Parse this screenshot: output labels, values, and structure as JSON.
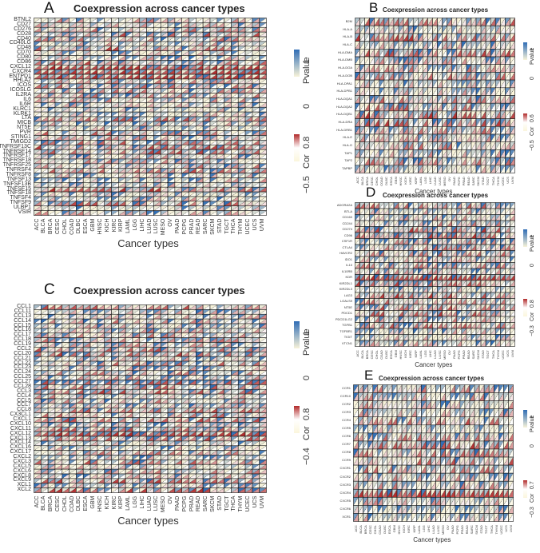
{
  "colors": {
    "pvalue_low": "#f8f3d9",
    "pvalue_high": "#2f6db5",
    "cor_low": "#fbf6dc",
    "cor_mid": "#ffffff",
    "cor_high": "#b22a2a",
    "border": "#1a1a1a"
  },
  "cancer_types": [
    "ACC",
    "BLCA",
    "BRCA",
    "CESC",
    "CHOL",
    "COAD",
    "DLBC",
    "ESCA",
    "GBM",
    "HNSC",
    "KICH",
    "KIRC",
    "KIRP",
    "LAML",
    "LGG",
    "LIHC",
    "LUAD",
    "LUSC",
    "MESO",
    "OV",
    "PAAD",
    "PCPG",
    "PRAD",
    "READ",
    "SARC",
    "SKCM",
    "STAD",
    "TGCT",
    "THCA",
    "THYM",
    "UCEC",
    "UCS",
    "UVM"
  ],
  "chart_data": [
    {
      "id": "A",
      "type": "heatmap",
      "title": "Coexpression across cancer types",
      "xlabel": "Cancer types",
      "ylabel": "",
      "genes": [
        "BTNL2",
        "CD27",
        "CD276",
        "CD28",
        "CD40",
        "CD40LG",
        "CD48",
        "CD70",
        "CD80",
        "CD86",
        "CXCL12",
        "CXCR4",
        "ENTPD1",
        "HHLA2",
        "ICOS",
        "ICOSLG",
        "IL2RA",
        "IL6",
        "IL6R",
        "KLRC1",
        "KLRK1",
        "LTA",
        "MICB",
        "NT5E",
        "PVR",
        "STING1",
        "TMIGD2",
        "TNFRSF13C",
        "TNFRSF14",
        "TNFRSF17",
        "TNFRSF18",
        "TNFRSF25",
        "TNFRSF4",
        "TNFRSF8",
        "TNFSF13",
        "TNFSF13B",
        "TNFSF15",
        "TNFSF18",
        "TNFSF4",
        "TNFSF9",
        "ULBP1",
        "VSIR"
      ],
      "legend_pvalue": {
        "title": "Pvalue",
        "min": "0",
        "max": "1"
      },
      "legend_cor": {
        "title": "Cor",
        "min": "−0.5",
        "max": "0.8"
      }
    },
    {
      "id": "B",
      "type": "heatmap",
      "title": "Coexpression across cancer types",
      "xlabel": "Cancer types",
      "ylabel": "",
      "genes": [
        "B2M",
        "HLA-A",
        "HLA-B",
        "HLA-C",
        "HLA-DMA",
        "HLA-DMB",
        "HLA-DOA",
        "HLA-DOB",
        "HLA-DPA1",
        "HLA-DPB1",
        "HLA-DQA1",
        "HLA-DQA2",
        "HLA-DQB1",
        "HLA-DRA",
        "HLA-DRB1",
        "HLA-E",
        "HLA-G",
        "TAP1",
        "TAP2",
        "TAPBP"
      ],
      "legend_pvalue": {
        "title": "Pvalue",
        "min": "0",
        "max": "1"
      },
      "legend_cor": {
        "title": "Cor",
        "min": "−0.5",
        "max": "0.6"
      }
    },
    {
      "id": "C",
      "type": "heatmap",
      "title": "Coexpression across cancer types",
      "xlabel": "Cancer types",
      "ylabel": "",
      "genes": [
        "CCL1",
        "CCL11",
        "CCL13",
        "CCL14",
        "CCL15",
        "CCL16",
        "CCL17",
        "CCL18",
        "CCL19",
        "CCL2",
        "CCL20",
        "CCL21",
        "CCL22",
        "CCL23",
        "CCL24",
        "CCL25",
        "CCL27",
        "CCL28",
        "CCL3",
        "CCL4",
        "CCL5",
        "CCL7",
        "CCL8",
        "CX3CL1",
        "CXCL1",
        "CXCL10",
        "CXCL11",
        "CXCL12",
        "CXCL13",
        "CXCL14",
        "CXCL16",
        "CXCL17",
        "CXCL2",
        "CXCL3",
        "CXCL5",
        "CXCL6",
        "CXCL8",
        "CXCL9",
        "XCL1",
        "XCL2"
      ],
      "legend_pvalue": {
        "title": "Pvalue",
        "min": "0",
        "max": "1"
      },
      "legend_cor": {
        "title": "Cor",
        "min": "−0.4",
        "max": "0.8"
      }
    },
    {
      "id": "D",
      "type": "heatmap",
      "title": "Coexpression across cancer types",
      "xlabel": "Cancer types",
      "ylabel": "",
      "genes": [
        "ADORA2A",
        "BTLA",
        "CD160",
        "CD244",
        "CD274",
        "CD96",
        "CSF1R",
        "CTLA4",
        "HAVCR2",
        "IDO1",
        "IL10",
        "IL10RB",
        "KDR",
        "KIR2DL1",
        "KIR2DL3",
        "LAG3",
        "LGALS9",
        "NT5E",
        "PDCD1",
        "PDCD1LG2",
        "TGFB1",
        "TGFBR1",
        "TIGIT",
        "VTCN1"
      ],
      "legend_pvalue": {
        "title": "Pvalue",
        "min": "0",
        "max": "1"
      },
      "legend_cor": {
        "title": "Cor",
        "min": "−0.3",
        "max": "0.8"
      }
    },
    {
      "id": "E",
      "type": "heatmap",
      "title": "Coexpression across cancer types",
      "xlabel": "Cancer types",
      "ylabel": "",
      "genes": [
        "CCR1",
        "CCR10",
        "CCR2",
        "CCR3",
        "CCR4",
        "CCR5",
        "CCR6",
        "CCR7",
        "CCR8",
        "CCR9",
        "CXCR1",
        "CXCR2",
        "CXCR3",
        "CXCR4",
        "CXCR5",
        "CXCR6",
        "XCR1"
      ],
      "legend_pvalue": {
        "title": "Pvalue",
        "min": "0",
        "max": "1"
      },
      "legend_cor": {
        "title": "Cor",
        "min": "−0.3",
        "max": "0.7"
      }
    }
  ]
}
